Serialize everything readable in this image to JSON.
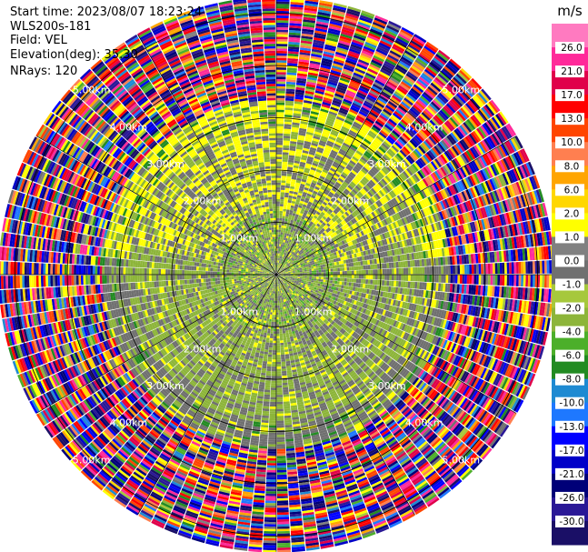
{
  "header": {
    "start_time": "Start time: 2023/08/07 18:23:24",
    "site": "WLS200s-181",
    "field": "Field: VEL",
    "elevation": "Elevation(deg): 35.30",
    "nrays": "NRays: 120"
  },
  "chart_data": {
    "type": "heatmap",
    "projection": "polar",
    "field": "VEL",
    "units": "m/s",
    "nrays": 120,
    "range_rings_km": [
      1,
      2,
      3,
      4,
      5
    ],
    "ring_labels": [
      "1.00km",
      "2.00km",
      "3.00km",
      "4.00km",
      "5.00km"
    ],
    "vlim": [
      -30.0,
      30.0
    ],
    "colorbar": {
      "unit_label": "m/s",
      "ticks": [
        "26.0",
        "21.0",
        "17.0",
        "13.0",
        "10.0",
        "8.0",
        "6.0",
        "2.0",
        "1.0",
        "0.0",
        "-1.0",
        "-2.0",
        "-4.0",
        "-6.0",
        "-8.0",
        "-10.0",
        "-13.0",
        "-17.0",
        "-21.0",
        "-26.0",
        "-30.0"
      ],
      "colors": [
        "#1a0f66",
        "#2a1896",
        "#000078",
        "#0000c8",
        "#0000ff",
        "#1e78ff",
        "#1e8ad2",
        "#228b22",
        "#4caf2a",
        "#8db53a",
        "#a6c83c",
        "#707070",
        "#808080",
        "#ffff00",
        "#ffd700",
        "#ffa500",
        "#ff7f50",
        "#ff4500",
        "#ff0000",
        "#e0004a",
        "#ff2a9a",
        "#ff7ac0"
      ]
    },
    "regions": [
      {
        "range_km": [
          0.0,
          1.2
        ],
        "description_values": [
          -2.0,
          0.0,
          2.0
        ]
      },
      {
        "range_km": [
          1.2,
          2.8
        ],
        "description_values": [
          -2.0,
          0.0,
          2.0,
          6.0
        ]
      },
      {
        "range_km": [
          2.8,
          3.3
        ],
        "description_values": [
          -6.0,
          -2.0,
          0.0,
          6.0
        ]
      },
      {
        "range_km": [
          3.3,
          5.3
        ],
        "description_values": [
          -30.0,
          30.0
        ]
      }
    ]
  }
}
